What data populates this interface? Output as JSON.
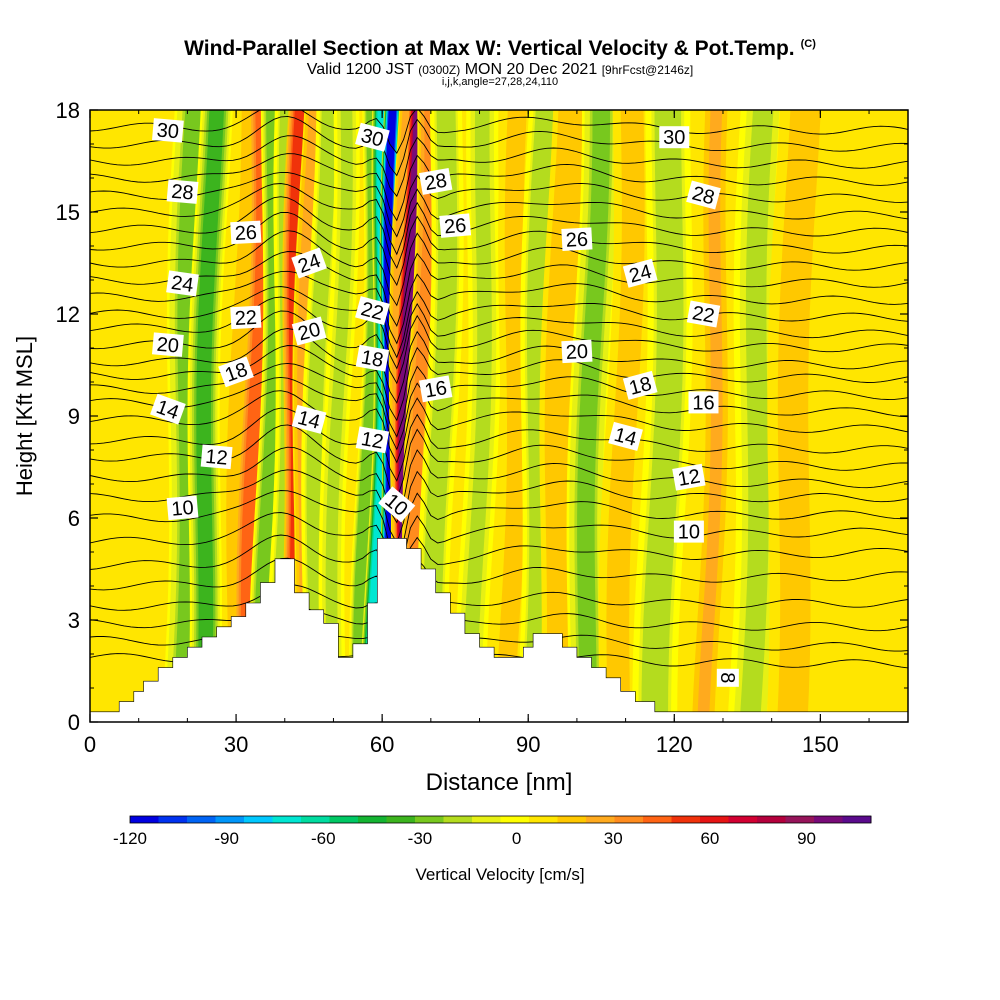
{
  "titles": {
    "main": "Wind-Parallel Section at Max W: Vertical Velocity & Pot.Temp.",
    "main_marker": "(C)",
    "valid_prefix": "Valid 1200 JST",
    "valid_zulu": "(0300Z)",
    "valid_date": "MON 20 Dec 2021",
    "forecast": "[9hrFcst@2146z]",
    "indices": "i,j,k,angle=27,28,24,110"
  },
  "chart_data": {
    "type": "heatmap",
    "xlabel": "Distance [nm]",
    "ylabel": "Height [Kft MSL]",
    "xlim": [
      0,
      168
    ],
    "ylim": [
      0,
      18
    ],
    "x_ticks": [
      "0",
      "30",
      "60",
      "90",
      "120",
      "150"
    ],
    "x_tick_values": [
      0,
      30,
      60,
      90,
      120,
      150
    ],
    "y_ticks": [
      "0",
      "3",
      "6",
      "9",
      "12",
      "15",
      "18"
    ],
    "y_tick_values": [
      0,
      3,
      6,
      9,
      12,
      15,
      18
    ],
    "colorbar": {
      "label": "Vertical Velocity [cm/s]",
      "tick_labels": [
        "-120",
        "-90",
        "-60",
        "-30",
        "0",
        "30",
        "60",
        "90"
      ],
      "tick_values": [
        -120,
        -90,
        -60,
        -30,
        0,
        30,
        60,
        90
      ],
      "range": [
        -120,
        110
      ],
      "colors": [
        "#0000e0",
        "#0032f0",
        "#0064f5",
        "#0096fa",
        "#00c8ff",
        "#00e6d2",
        "#00dca0",
        "#00c864",
        "#14b432",
        "#3cb41e",
        "#78c81e",
        "#b4dc1e",
        "#e6f014",
        "#ffff00",
        "#ffe600",
        "#ffc800",
        "#ffaa1e",
        "#ff8c1e",
        "#ff6414",
        "#f0320a",
        "#e61414",
        "#d20032",
        "#b4003c",
        "#96145a",
        "#780a78",
        "#5a0a8c"
      ]
    },
    "terrain_kft": [
      [
        0,
        0.3
      ],
      [
        6,
        0.3
      ],
      [
        6,
        0.6
      ],
      [
        9,
        0.6
      ],
      [
        9,
        0.9
      ],
      [
        11,
        0.9
      ],
      [
        11,
        1.2
      ],
      [
        14,
        1.2
      ],
      [
        14,
        1.6
      ],
      [
        17,
        1.6
      ],
      [
        17,
        1.9
      ],
      [
        20,
        1.9
      ],
      [
        20,
        2.2
      ],
      [
        23,
        2.2
      ],
      [
        23,
        2.5
      ],
      [
        26,
        2.5
      ],
      [
        26,
        2.8
      ],
      [
        29,
        2.8
      ],
      [
        29,
        3.1
      ],
      [
        32,
        3.1
      ],
      [
        32,
        3.5
      ],
      [
        35,
        3.5
      ],
      [
        35,
        4.1
      ],
      [
        38,
        4.1
      ],
      [
        38,
        4.8
      ],
      [
        42,
        4.8
      ],
      [
        42,
        3.8
      ],
      [
        45,
        3.8
      ],
      [
        45,
        3.3
      ],
      [
        48,
        3.3
      ],
      [
        48,
        2.9
      ],
      [
        51,
        2.9
      ],
      [
        51,
        1.9
      ],
      [
        54,
        1.9
      ],
      [
        54,
        2.3
      ],
      [
        57,
        2.3
      ],
      [
        57,
        3.5
      ],
      [
        59,
        3.5
      ],
      [
        59,
        5.4
      ],
      [
        65,
        5.4
      ],
      [
        65,
        5.1
      ],
      [
        68,
        5.1
      ],
      [
        68,
        4.5
      ],
      [
        71,
        4.5
      ],
      [
        71,
        3.8
      ],
      [
        74,
        3.8
      ],
      [
        74,
        3.2
      ],
      [
        77,
        3.2
      ],
      [
        77,
        2.6
      ],
      [
        80,
        2.6
      ],
      [
        80,
        2.2
      ],
      [
        83,
        2.2
      ],
      [
        83,
        1.9
      ],
      [
        89,
        1.9
      ],
      [
        89,
        2.2
      ],
      [
        91,
        2.2
      ],
      [
        91,
        2.6
      ],
      [
        97,
        2.6
      ],
      [
        97,
        2.2
      ],
      [
        100,
        2.2
      ],
      [
        100,
        1.9
      ],
      [
        103,
        1.9
      ],
      [
        103,
        1.6
      ],
      [
        106,
        1.6
      ],
      [
        106,
        1.3
      ],
      [
        109,
        1.3
      ],
      [
        109,
        0.9
      ],
      [
        112,
        0.9
      ],
      [
        112,
        0.6
      ],
      [
        116,
        0.6
      ],
      [
        116,
        0.3
      ],
      [
        168,
        0.3
      ]
    ],
    "velocity_bands": [
      {
        "x": 20,
        "w": 3.0,
        "v": -25
      },
      {
        "x": 24,
        "w": 2.5,
        "v": -35
      },
      {
        "x": 31,
        "w": 2.0,
        "v": 20
      },
      {
        "x": 34,
        "w": 2.5,
        "v": 45
      },
      {
        "x": 37,
        "w": 2.0,
        "v": -30
      },
      {
        "x": 40,
        "w": 2.0,
        "v": -20
      },
      {
        "x": 42,
        "w": 1.8,
        "v": 55
      },
      {
        "x": 44.5,
        "w": 1.8,
        "v": 30
      },
      {
        "x": 47,
        "w": 2.0,
        "v": -20
      },
      {
        "x": 51,
        "w": 2.0,
        "v": -15
      },
      {
        "x": 57,
        "w": 1.5,
        "v": -30
      },
      {
        "x": 59.5,
        "w": 1.6,
        "v": -75
      },
      {
        "x": 61.2,
        "w": 1.3,
        "v": -120
      },
      {
        "x": 63.5,
        "w": 1.3,
        "v": 30
      },
      {
        "x": 65.3,
        "w": 1.6,
        "v": 95
      },
      {
        "x": 68,
        "w": 2.0,
        "v": 35
      },
      {
        "x": 72,
        "w": 2.5,
        "v": -20
      },
      {
        "x": 80,
        "w": 2.5,
        "v": -15
      },
      {
        "x": 87,
        "w": 2.5,
        "v": 15
      },
      {
        "x": 92,
        "w": 2.5,
        "v": -20
      },
      {
        "x": 97,
        "w": 3.0,
        "v": 20
      },
      {
        "x": 103,
        "w": 3.0,
        "v": -25
      },
      {
        "x": 110,
        "w": 3.0,
        "v": 15
      },
      {
        "x": 118,
        "w": 3.5,
        "v": -20
      },
      {
        "x": 128,
        "w": 2.0,
        "v": 25
      },
      {
        "x": 137,
        "w": 3.5,
        "v": -15
      },
      {
        "x": 145,
        "w": 4.0,
        "v": 15
      },
      {
        "x": 160,
        "w": 4.0,
        "v": 10
      }
    ],
    "theta_contours": [
      {
        "x0": 0,
        "y0": 1.9,
        "x1": 168,
        "y1": 1.7,
        "wave": 0.4
      },
      {
        "x0": 0,
        "y0": 2.4,
        "x1": 168,
        "y1": 2.2,
        "wave": 0.5
      },
      {
        "x0": 0,
        "y0": 2.9,
        "x1": 168,
        "y1": 2.8,
        "wave": 0.6
      },
      {
        "x0": 0,
        "y0": 3.4,
        "x1": 168,
        "y1": 3.5,
        "wave": 0.6
      },
      {
        "x0": 0,
        "y0": 4.0,
        "x1": 168,
        "y1": 4.3,
        "wave": 0.7
      },
      {
        "x0": 0,
        "y0": 4.6,
        "x1": 168,
        "y1": 5.0,
        "wave": 0.8
      },
      {
        "x0": 0,
        "y0": 5.3,
        "x1": 168,
        "y1": 5.6,
        "wave": 0.9
      },
      {
        "x0": 0,
        "y0": 6.0,
        "x1": 168,
        "y1": 6.1,
        "wave": 1.0
      },
      {
        "x0": 0,
        "y0": 6.6,
        "x1": 168,
        "y1": 6.6,
        "wave": 1.0
      },
      {
        "x0": 0,
        "y0": 7.2,
        "x1": 168,
        "y1": 7.0,
        "wave": 1.0
      },
      {
        "x0": 0,
        "y0": 7.8,
        "x1": 168,
        "y1": 7.5,
        "wave": 1.0
      },
      {
        "x0": 0,
        "y0": 8.3,
        "x1": 168,
        "y1": 8.0,
        "wave": 1.0
      },
      {
        "x0": 0,
        "y0": 8.9,
        "x1": 168,
        "y1": 8.6,
        "wave": 1.0
      },
      {
        "x0": 0,
        "y0": 9.4,
        "x1": 168,
        "y1": 9.1,
        "wave": 1.0
      },
      {
        "x0": 0,
        "y0": 9.8,
        "x1": 168,
        "y1": 9.6,
        "wave": 1.0
      },
      {
        "x0": 0,
        "y0": 10.2,
        "x1": 168,
        "y1": 10.1,
        "wave": 1.0
      },
      {
        "x0": 0,
        "y0": 10.6,
        "x1": 168,
        "y1": 10.5,
        "wave": 1.0
      },
      {
        "x0": 0,
        "y0": 11.1,
        "x1": 168,
        "y1": 11.0,
        "wave": 1.0
      },
      {
        "x0": 0,
        "y0": 11.6,
        "x1": 168,
        "y1": 11.4,
        "wave": 1.0
      },
      {
        "x0": 0,
        "y0": 12.0,
        "x1": 168,
        "y1": 11.9,
        "wave": 1.0
      },
      {
        "x0": 0,
        "y0": 12.5,
        "x1": 168,
        "y1": 12.4,
        "wave": 1.0
      },
      {
        "x0": 0,
        "y0": 13.0,
        "x1": 168,
        "y1": 12.9,
        "wave": 1.0
      },
      {
        "x0": 0,
        "y0": 13.5,
        "x1": 168,
        "y1": 13.4,
        "wave": 1.0
      },
      {
        "x0": 0,
        "y0": 14.0,
        "x1": 168,
        "y1": 13.9,
        "wave": 1.0
      },
      {
        "x0": 0,
        "y0": 14.5,
        "x1": 168,
        "y1": 14.4,
        "wave": 1.0
      },
      {
        "x0": 0,
        "y0": 15.0,
        "x1": 168,
        "y1": 14.9,
        "wave": 1.0
      },
      {
        "x0": 0,
        "y0": 15.5,
        "x1": 168,
        "y1": 15.4,
        "wave": 0.9
      },
      {
        "x0": 0,
        "y0": 16.0,
        "x1": 168,
        "y1": 15.9,
        "wave": 0.9
      },
      {
        "x0": 0,
        "y0": 16.5,
        "x1": 168,
        "y1": 16.4,
        "wave": 0.8
      },
      {
        "x0": 0,
        "y0": 17.0,
        "x1": 168,
        "y1": 16.9,
        "wave": 0.8
      },
      {
        "x0": 0,
        "y0": 17.5,
        "x1": 168,
        "y1": 17.4,
        "wave": 0.7
      }
    ],
    "contour_labels": [
      {
        "text": "30",
        "x": 16,
        "y": 17.4,
        "rot": 5
      },
      {
        "text": "28",
        "x": 19,
        "y": 15.6,
        "rot": 5
      },
      {
        "text": "26",
        "x": 32,
        "y": 14.4,
        "rot": -3
      },
      {
        "text": "24",
        "x": 19,
        "y": 12.9,
        "rot": 8
      },
      {
        "text": "22",
        "x": 32,
        "y": 11.9,
        "rot": -3
      },
      {
        "text": "20",
        "x": 16,
        "y": 11.1,
        "rot": 5
      },
      {
        "text": "18",
        "x": 30,
        "y": 10.3,
        "rot": -20
      },
      {
        "text": "14",
        "x": 16,
        "y": 9.2,
        "rot": 20
      },
      {
        "text": "12",
        "x": 26,
        "y": 7.8,
        "rot": 5
      },
      {
        "text": "10",
        "x": 19,
        "y": 6.3,
        "rot": -5
      },
      {
        "text": "30",
        "x": 58,
        "y": 17.2,
        "rot": 15
      },
      {
        "text": "28",
        "x": 71,
        "y": 15.9,
        "rot": -10
      },
      {
        "text": "26",
        "x": 75,
        "y": 14.6,
        "rot": -5
      },
      {
        "text": "24",
        "x": 45,
        "y": 13.5,
        "rot": -20
      },
      {
        "text": "22",
        "x": 58,
        "y": 12.1,
        "rot": 15
      },
      {
        "text": "20",
        "x": 45,
        "y": 11.5,
        "rot": -15
      },
      {
        "text": "18",
        "x": 58,
        "y": 10.7,
        "rot": 10
      },
      {
        "text": "16",
        "x": 71,
        "y": 9.8,
        "rot": -10
      },
      {
        "text": "14",
        "x": 45,
        "y": 8.9,
        "rot": 15
      },
      {
        "text": "12",
        "x": 58,
        "y": 8.3,
        "rot": 10
      },
      {
        "text": "10",
        "x": 63,
        "y": 6.4,
        "rot": 40
      },
      {
        "text": "30",
        "x": 120,
        "y": 17.2,
        "rot": 0
      },
      {
        "text": "28",
        "x": 126,
        "y": 15.5,
        "rot": 15
      },
      {
        "text": "26",
        "x": 100,
        "y": 14.2,
        "rot": -3
      },
      {
        "text": "24",
        "x": 113,
        "y": 13.2,
        "rot": -15
      },
      {
        "text": "22",
        "x": 126,
        "y": 12.0,
        "rot": 10
      },
      {
        "text": "20",
        "x": 100,
        "y": 10.9,
        "rot": -3
      },
      {
        "text": "18",
        "x": 113,
        "y": 9.9,
        "rot": -15
      },
      {
        "text": "16",
        "x": 126,
        "y": 9.4,
        "rot": 0
      },
      {
        "text": "14",
        "x": 110,
        "y": 8.4,
        "rot": 15
      },
      {
        "text": "12",
        "x": 123,
        "y": 7.2,
        "rot": -10
      },
      {
        "text": "10",
        "x": 123,
        "y": 5.6,
        "rot": 0
      },
      {
        "text": "8",
        "x": 131,
        "y": 1.3,
        "rot": 90
      }
    ]
  }
}
